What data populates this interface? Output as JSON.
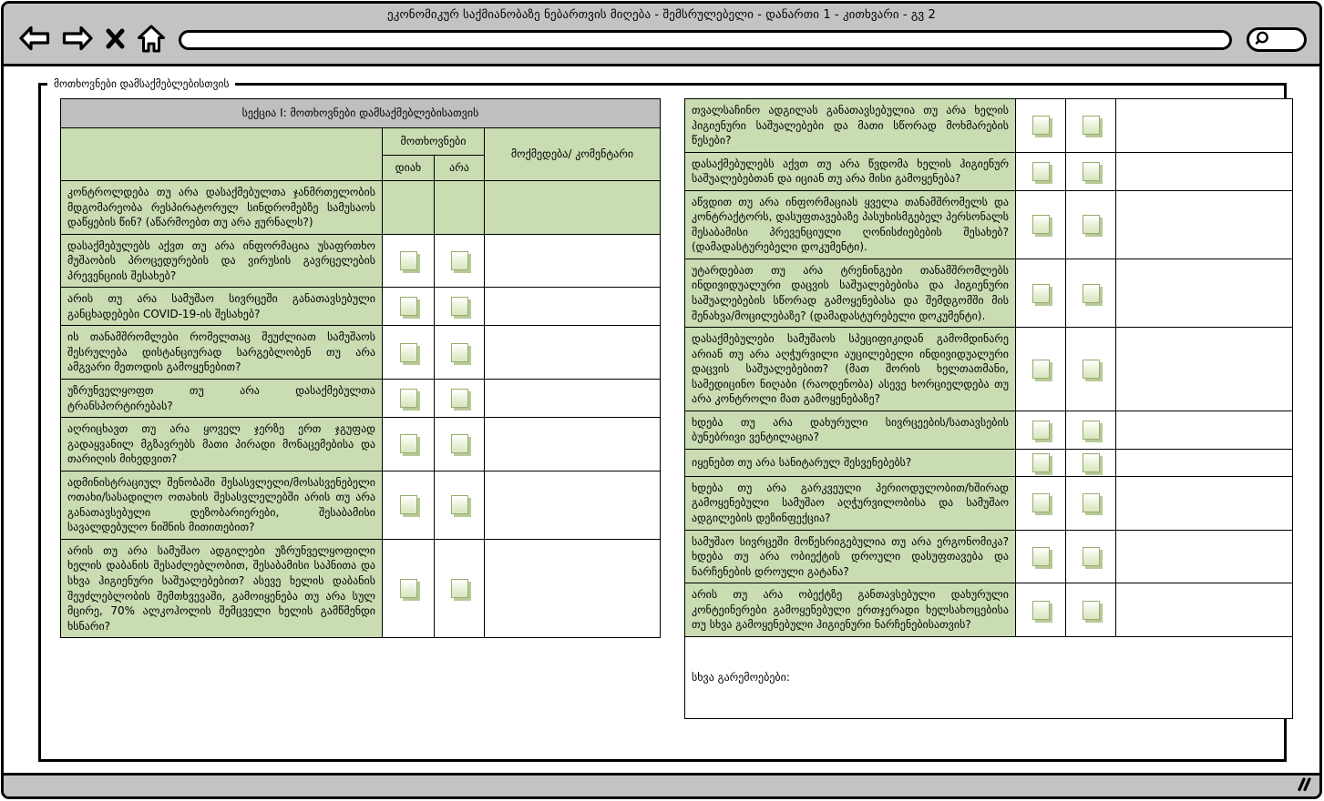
{
  "window": {
    "title": "ეკონომიკურ საქმიანობაზე ნებართვის მიღება - შემსრულებელი - დანართი 1 - კითხვარი - გვ 2"
  },
  "toolbar": {
    "address_value": "",
    "icons": [
      "back-arrow",
      "forward-arrow",
      "close-x",
      "home",
      "magnifier",
      "resize-handle"
    ]
  },
  "colors": {
    "chrome_gray": "#c3c3c3",
    "section_header_gray": "#bfbfbf",
    "cell_green": "#c9dcb2",
    "checkbox_border": "#96ae6e",
    "checkbox_shadow": "#b7c998"
  },
  "fieldset": {
    "legend": "მოთხოვნები დამსაქმებლებისთვის"
  },
  "left_table": {
    "section_title": "სექცია I: მოთხოვნები დამსაქმებლებისათვის",
    "headers": {
      "requirements": "მოთხოვნები",
      "yes": "დიახ",
      "no": "არა",
      "comment": "მოქმედება/ კომენტარი"
    },
    "rows": [
      {
        "question": "კონტროლდება თუ არა დასაქმებულთა ჯანმრთელობის მდგომარეობა რესპირატორულ სინდრომებზე სამუსაოს დაწყების წინ? (აწარმოებთ თუ არა ჟურნალს?)",
        "checkboxes": false,
        "all_green": true
      },
      {
        "question": "დასაქმებულებს აქვთ თუ არა ინფორმაცია უსაფრთხო მუშაობის პროცედურების და ვირუსის გავრცელების პრევენციის შესახებ?",
        "checkboxes": true,
        "all_green": false
      },
      {
        "question": "არის თუ არა სამუშაო სივრცეში განათავსებული განცხადებები COVID-19-ის შესახებ?",
        "checkboxes": true,
        "all_green": false
      },
      {
        "question": "ის თანამშრომლები რომელთაც შეუძლიათ სამუშაოს შესრულება დისტანციურად სარგებლობენ თუ არა ამგვარი მეთოდის გამოყენებით?",
        "checkboxes": true,
        "all_green": false
      },
      {
        "question": "უზრუნველყოფთ თუ არა დასაქმებულთა ტრანსპორტირებას?",
        "checkboxes": true,
        "all_green": false
      },
      {
        "question": "აღრიცხავთ თუ არა ყოველ ჯერზე ერთ ჯგუფად გადაყვანილ მგზავრებს მათი პირადი მონაცემებისა და თარიღის მიხედვით?",
        "checkboxes": true,
        "all_green": false
      },
      {
        "question": "ადმინისტრაციულ შენობაში შესასვლელი/მოსასვენებელი ოთახი/სასადილო ოთახის შესასვლელებში არის თუ არა განათავსებული დეზობარიერები, შესაბამისი სავალდებულო ნიშნის მითითებით?",
        "checkboxes": true,
        "all_green": false
      },
      {
        "question": "არის თუ არა სამუშაო ადგილები უზრუნველყოფილი ხელის დაბანის შესაძლებლობით, შესაბამისი საპნითა და სხვა ჰიგიენური საშუალებებით? ასევე ხელის დაბანის შეუძლებლობის შემთხვევაში, გამოიყენება თუ არა სულ მცირე, 70% ალკოჰოლის შემცველი ხელის გამწმენდი ხსნარი?",
        "checkboxes": true,
        "all_green": false
      }
    ]
  },
  "right_table": {
    "rows": [
      {
        "question": "თვალსაჩინო ადგილას განათავსებულია თუ არა ხელის ჰიგიენური საშუალებები და მათი სწორად მოხმარების წესები?",
        "checkboxes": true,
        "all_green": false
      },
      {
        "question": "დასაქმებულებს აქვთ თუ არა წვდომა ხელის ჰიგიენურ საშუალებებთან და იციან თუ არა მისი გამოყენება?",
        "checkboxes": true,
        "all_green": false
      },
      {
        "question": "აწვდით თუ არა ინფორმაციას ყველა თანამშრომელს და კონტრაქტორს, დასუფთავებაზე პასუხისმგებელ პერსონალს შესაბამისი პრევენციული ღონისძიებების შესახებ? (დამადასტურებელი დოკუმენტი).",
        "checkboxes": true,
        "all_green": false
      },
      {
        "question": "უტარდებათ თუ არა ტრენინგები თანამშრომლებს ინდივიდუალური დაცვის საშუალებებისა და ჰიგიენური საშუალებების სწორად გამოყენებასა და შემდგომში მის შენახვა/მოცილებაზე? (დამადასტურებელი დოკუმენტი).",
        "checkboxes": true,
        "all_green": false
      },
      {
        "question": "დასაქმებულები სამუშაოს სპეციფიკიდან გამომდინარე არიან თუ არა აღჭურვილი აუცილებელი ინდივიდუალური დაცვის საშუალებებით? (მათ შორის ხელთათმანი, სამედიცინო ნიღაბი (რაოდენობა) ასევე ხორციელდება თუ არა კონტროლი მათ გამოყენებაზე?",
        "checkboxes": true,
        "all_green": false
      },
      {
        "question": "ხდება თუ არა დახურული სივრცეების/სათავსების ბუნებრივი ვენტილაცია?",
        "checkboxes": true,
        "all_green": false
      },
      {
        "question": "იყენებთ თუ არა სანიტარულ შესვენებებს?",
        "checkboxes": true,
        "all_green": false
      },
      {
        "question": "ხდება თუ არა გარკვეული პერიოდულობით/ხშირად გამოყენებული სამუშაო აღჭურვილობისა და სამუშაო ადგილების დეზინფექცია?",
        "checkboxes": true,
        "all_green": false
      },
      {
        "question": "სამუშაო სივრცეში მოწესრიგებულია თუ არა ერგონომიკა? ხდება თუ არა ობიექტის დროული დასუფთავება და ნარჩენების დროული გატანა?",
        "checkboxes": true,
        "all_green": false
      },
      {
        "question": "არის თუ არა ობექტზე განთავსებული დახურული კონტეინერები გამოყენებული ერთჯერადი ხელსახოცებისა თუ სხვა გამოყენებული ჰიგიენური ნარჩენებისათვის?",
        "checkboxes": true,
        "all_green": false
      }
    ],
    "other_label": "სხვა გარემოებები:"
  }
}
